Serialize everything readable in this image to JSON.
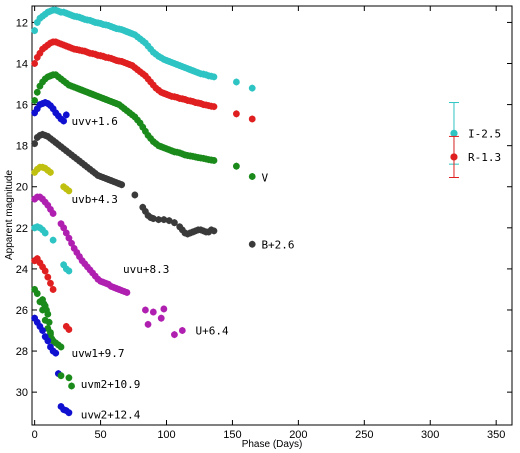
{
  "chart_data": {
    "type": "scatter",
    "title": "",
    "xlabel": "Phase (Days)",
    "ylabel": "Apparent magnitude",
    "xlim": [
      -2,
      362
    ],
    "ylim": [
      31.6,
      11.2
    ],
    "y_inverted": true,
    "xticks": [
      0,
      50,
      100,
      150,
      200,
      250,
      300,
      350
    ],
    "yticks": [
      12,
      14,
      16,
      18,
      20,
      22,
      24,
      26,
      28,
      30
    ],
    "grid": false,
    "series": [
      {
        "name": "I-2.5",
        "color": "#2ec4c4",
        "x": [
          0,
          2,
          4,
          6,
          8,
          10,
          12,
          14,
          16,
          18,
          20,
          22,
          24,
          26,
          28,
          30,
          32,
          34,
          36,
          38,
          40,
          42,
          44,
          46,
          48,
          50,
          52,
          54,
          56,
          58,
          60,
          62,
          64,
          66,
          68,
          70,
          72,
          74,
          76,
          78,
          80,
          82,
          84,
          86,
          88,
          90,
          92,
          94,
          96,
          98,
          100,
          102,
          104,
          106,
          108,
          110,
          112,
          114,
          116,
          118,
          120,
          122,
          124,
          126,
          128,
          130,
          132,
          134,
          136,
          153,
          165
        ],
        "y": [
          12.4,
          12.0,
          11.8,
          11.7,
          11.6,
          11.5,
          11.45,
          11.4,
          11.4,
          11.45,
          11.5,
          11.5,
          11.55,
          11.6,
          11.65,
          11.7,
          11.72,
          11.75,
          11.8,
          11.85,
          11.88,
          11.9,
          11.95,
          12.0,
          12.02,
          12.05,
          12.1,
          12.12,
          12.15,
          12.2,
          12.25,
          12.3,
          12.32,
          12.35,
          12.4,
          12.45,
          12.5,
          12.55,
          12.6,
          12.7,
          12.8,
          12.9,
          13.0,
          13.15,
          13.3,
          13.45,
          13.55,
          13.65,
          13.72,
          13.8,
          13.85,
          13.9,
          13.95,
          14.0,
          14.05,
          14.1,
          14.15,
          14.2,
          14.25,
          14.3,
          14.35,
          14.4,
          14.45,
          14.5,
          14.52,
          14.55,
          14.6,
          14.62,
          14.65,
          14.9,
          15.2
        ]
      },
      {
        "name": "R-1.3",
        "color": "#e02020",
        "x": [
          0,
          2,
          4,
          6,
          8,
          10,
          12,
          14,
          16,
          18,
          20,
          22,
          24,
          26,
          28,
          30,
          32,
          34,
          36,
          38,
          40,
          42,
          44,
          46,
          48,
          50,
          52,
          54,
          56,
          58,
          60,
          62,
          64,
          66,
          68,
          70,
          72,
          74,
          76,
          78,
          80,
          82,
          84,
          86,
          88,
          90,
          92,
          94,
          96,
          98,
          100,
          102,
          104,
          106,
          108,
          110,
          112,
          114,
          116,
          118,
          120,
          122,
          124,
          126,
          128,
          130,
          132,
          134,
          136,
          153,
          165
        ],
        "y": [
          14.0,
          13.7,
          13.5,
          13.3,
          13.2,
          13.1,
          13.0,
          12.95,
          12.95,
          13.0,
          13.05,
          13.1,
          13.15,
          13.2,
          13.25,
          13.3,
          13.32,
          13.35,
          13.38,
          13.4,
          13.45,
          13.5,
          13.52,
          13.55,
          13.6,
          13.62,
          13.65,
          13.7,
          13.72,
          13.75,
          13.8,
          13.85,
          13.88,
          13.9,
          13.95,
          14.0,
          14.05,
          14.1,
          14.2,
          14.3,
          14.4,
          14.5,
          14.6,
          14.75,
          14.9,
          15.05,
          15.2,
          15.3,
          15.4,
          15.45,
          15.5,
          15.55,
          15.6,
          15.62,
          15.65,
          15.7,
          15.72,
          15.75,
          15.8,
          15.82,
          15.85,
          15.9,
          15.92,
          15.95,
          16.0,
          16.02,
          16.05,
          16.08,
          16.1,
          16.45,
          16.7
        ]
      },
      {
        "name": "V",
        "color": "#1a8a1a",
        "x": [
          0,
          2,
          4,
          6,
          8,
          10,
          12,
          14,
          16,
          18,
          20,
          22,
          24,
          26,
          28,
          30,
          32,
          34,
          36,
          38,
          40,
          42,
          44,
          46,
          48,
          50,
          52,
          54,
          56,
          58,
          60,
          62,
          64,
          66,
          68,
          70,
          72,
          74,
          76,
          78,
          80,
          82,
          84,
          86,
          88,
          90,
          92,
          94,
          96,
          98,
          100,
          102,
          104,
          106,
          108,
          110,
          112,
          114,
          116,
          118,
          120,
          122,
          124,
          126,
          128,
          130,
          132,
          134,
          136,
          153,
          165
        ],
        "y": [
          15.8,
          15.4,
          15.1,
          14.9,
          14.75,
          14.65,
          14.6,
          14.55,
          14.55,
          14.65,
          14.75,
          14.85,
          14.95,
          15.05,
          15.1,
          15.15,
          15.2,
          15.25,
          15.3,
          15.35,
          15.4,
          15.45,
          15.5,
          15.55,
          15.6,
          15.65,
          15.7,
          15.75,
          15.8,
          15.85,
          15.9,
          15.95,
          16.0,
          16.1,
          16.2,
          16.3,
          16.4,
          16.5,
          16.6,
          16.75,
          16.9,
          17.1,
          17.3,
          17.5,
          17.65,
          17.8,
          17.9,
          18.0,
          18.05,
          18.1,
          18.15,
          18.2,
          18.25,
          18.3,
          18.32,
          18.35,
          18.4,
          18.45,
          18.48,
          18.5,
          18.52,
          18.55,
          18.58,
          18.6,
          18.62,
          18.65,
          18.68,
          18.7,
          18.72,
          19.0,
          19.5
        ]
      },
      {
        "name": "B+2.6",
        "color": "#3a3a3a",
        "x": [
          0,
          2,
          4,
          6,
          8,
          10,
          12,
          14,
          16,
          18,
          20,
          22,
          24,
          26,
          28,
          30,
          32,
          34,
          36,
          38,
          40,
          42,
          44,
          46,
          48,
          50,
          52,
          54,
          56,
          58,
          60,
          62,
          64,
          66,
          76,
          82,
          84,
          86,
          88,
          90,
          94,
          98,
          102,
          106,
          110,
          112,
          114,
          116,
          118,
          120,
          122,
          124,
          126,
          128,
          130,
          132,
          134,
          136,
          165
        ],
        "y": [
          17.9,
          17.6,
          17.5,
          17.45,
          17.5,
          17.55,
          17.65,
          17.75,
          17.85,
          17.95,
          18.05,
          18.15,
          18.25,
          18.35,
          18.45,
          18.55,
          18.65,
          18.75,
          18.85,
          18.95,
          19.05,
          19.15,
          19.25,
          19.35,
          19.45,
          19.5,
          19.55,
          19.6,
          19.65,
          19.7,
          19.75,
          19.8,
          19.85,
          19.9,
          20.4,
          21.0,
          21.2,
          21.4,
          21.5,
          21.55,
          21.6,
          21.6,
          21.65,
          21.75,
          21.95,
          22.1,
          22.25,
          22.3,
          22.25,
          22.2,
          22.15,
          22.1,
          22.1,
          22.15,
          22.2,
          22.2,
          22.1,
          22.15,
          22.8
        ]
      },
      {
        "name": "uvv+1.6",
        "color": "#1010d0",
        "x": [
          0,
          2,
          4,
          6,
          8,
          10,
          12,
          14,
          16,
          18,
          20,
          22,
          24
        ],
        "y": [
          16.4,
          16.2,
          16.0,
          15.95,
          15.9,
          15.95,
          16.05,
          16.2,
          16.4,
          16.55,
          16.7,
          16.8,
          16.5
        ]
      },
      {
        "name": "uvb+4.3",
        "color": "#c0c010",
        "x": [
          0,
          2,
          4,
          6,
          8,
          10,
          12,
          22,
          24,
          26
        ],
        "y": [
          19.3,
          19.15,
          19.05,
          19.05,
          19.1,
          19.2,
          19.3,
          20.0,
          20.1,
          20.2
        ]
      },
      {
        "name": "uvu+8.3",
        "color": "#b020b0",
        "x": [
          0,
          2,
          4,
          6,
          8,
          10,
          12,
          14,
          20,
          22,
          24,
          26,
          28,
          30,
          32,
          34,
          36,
          38,
          40,
          42,
          44,
          46,
          48,
          50,
          52,
          54,
          56,
          58,
          60,
          62,
          64,
          66,
          68,
          70
        ],
        "y": [
          20.6,
          20.5,
          20.5,
          20.6,
          20.75,
          20.9,
          21.1,
          21.3,
          21.8,
          22.0,
          22.25,
          22.5,
          22.75,
          23.0,
          23.2,
          23.4,
          23.6,
          23.75,
          23.9,
          24.05,
          24.2,
          24.35,
          24.5,
          24.6,
          24.65,
          24.7,
          24.75,
          24.85,
          24.9,
          24.95,
          25.0,
          25.05,
          25.1,
          25.15
        ]
      },
      {
        "name": "I-2.5 (uv)",
        "color": "#2ec4c4",
        "x": [
          0,
          2,
          4,
          6,
          8,
          14,
          22,
          24,
          26
        ],
        "y": [
          22.0,
          21.95,
          22.0,
          22.1,
          22.25,
          22.6,
          23.8,
          24.0,
          24.1
        ]
      },
      {
        "name": "R-1.3 (uv)",
        "color": "#e02020",
        "x": [
          0,
          2,
          4,
          6,
          8,
          10,
          12,
          14,
          24,
          26
        ],
        "y": [
          23.6,
          23.5,
          23.7,
          23.9,
          24.1,
          24.4,
          24.7,
          25.0,
          26.8,
          26.95
        ]
      },
      {
        "name": "U+6.4",
        "color": "#b020b0",
        "x": [
          84,
          86,
          90,
          96,
          98,
          106,
          112
        ],
        "y": [
          26.0,
          26.7,
          26.1,
          26.4,
          25.95,
          27.2,
          27.0
        ]
      },
      {
        "name": "uvw1+9.7",
        "color": "#1a8a1a",
        "x": [
          0,
          2,
          4,
          6,
          8,
          10,
          12,
          14,
          16,
          18,
          20
        ],
        "y": [
          25.0,
          25.2,
          25.6,
          26.0,
          26.5,
          26.9,
          27.2,
          27.5,
          27.6,
          27.7,
          27.8
        ]
      },
      {
        "name": "uvw1+9.7 (b)",
        "color": "#1a8a1a",
        "x": [
          6,
          7,
          8,
          9,
          10,
          11,
          12,
          13
        ],
        "y": [
          25.5,
          25.7,
          25.8,
          26.0,
          26.2,
          26.6,
          27.1,
          27.4
        ]
      },
      {
        "name": "uvw2+12.4",
        "color": "#1010d0",
        "x": [
          0,
          2,
          4,
          6,
          8,
          10,
          12,
          14,
          16,
          18,
          20,
          22,
          24,
          26
        ],
        "y": [
          26.4,
          26.6,
          26.8,
          27.0,
          27.3,
          27.5,
          27.8,
          28.0,
          28.1,
          29.1,
          30.7,
          30.85,
          30.9,
          31.0
        ]
      },
      {
        "name": "uvm2+10.9",
        "color": "#1a8a1a",
        "x": [
          20,
          26,
          28
        ],
        "y": [
          29.2,
          29.3,
          29.7
        ]
      }
    ],
    "band_labels": [
      {
        "text": "uvv+1.6",
        "x": 28,
        "y": 16.8
      },
      {
        "text": "V",
        "x": 172,
        "y": 19.55
      },
      {
        "text": "uvb+4.3",
        "x": 28,
        "y": 20.6
      },
      {
        "text": "B+2.6",
        "x": 172,
        "y": 22.8
      },
      {
        "text": "uvu+8.3",
        "x": 67,
        "y": 24.0
      },
      {
        "text": "U+6.4",
        "x": 122,
        "y": 27.0
      },
      {
        "text": "uvw1+9.7",
        "x": 28,
        "y": 28.1
      },
      {
        "text": "uvm2+10.9",
        "x": 35,
        "y": 29.6
      },
      {
        "text": "uvw2+12.4",
        "x": 35,
        "y": 31.1
      }
    ],
    "legend": {
      "placement": "right-middle",
      "entries": [
        {
          "name": "I-2.5",
          "color": "#2ec4c4",
          "x": 318,
          "y": 17.4,
          "err": 1.5
        },
        {
          "name": "R-1.3",
          "color": "#e02020",
          "x": 318,
          "y": 18.55,
          "err": 1.0
        }
      ]
    }
  }
}
